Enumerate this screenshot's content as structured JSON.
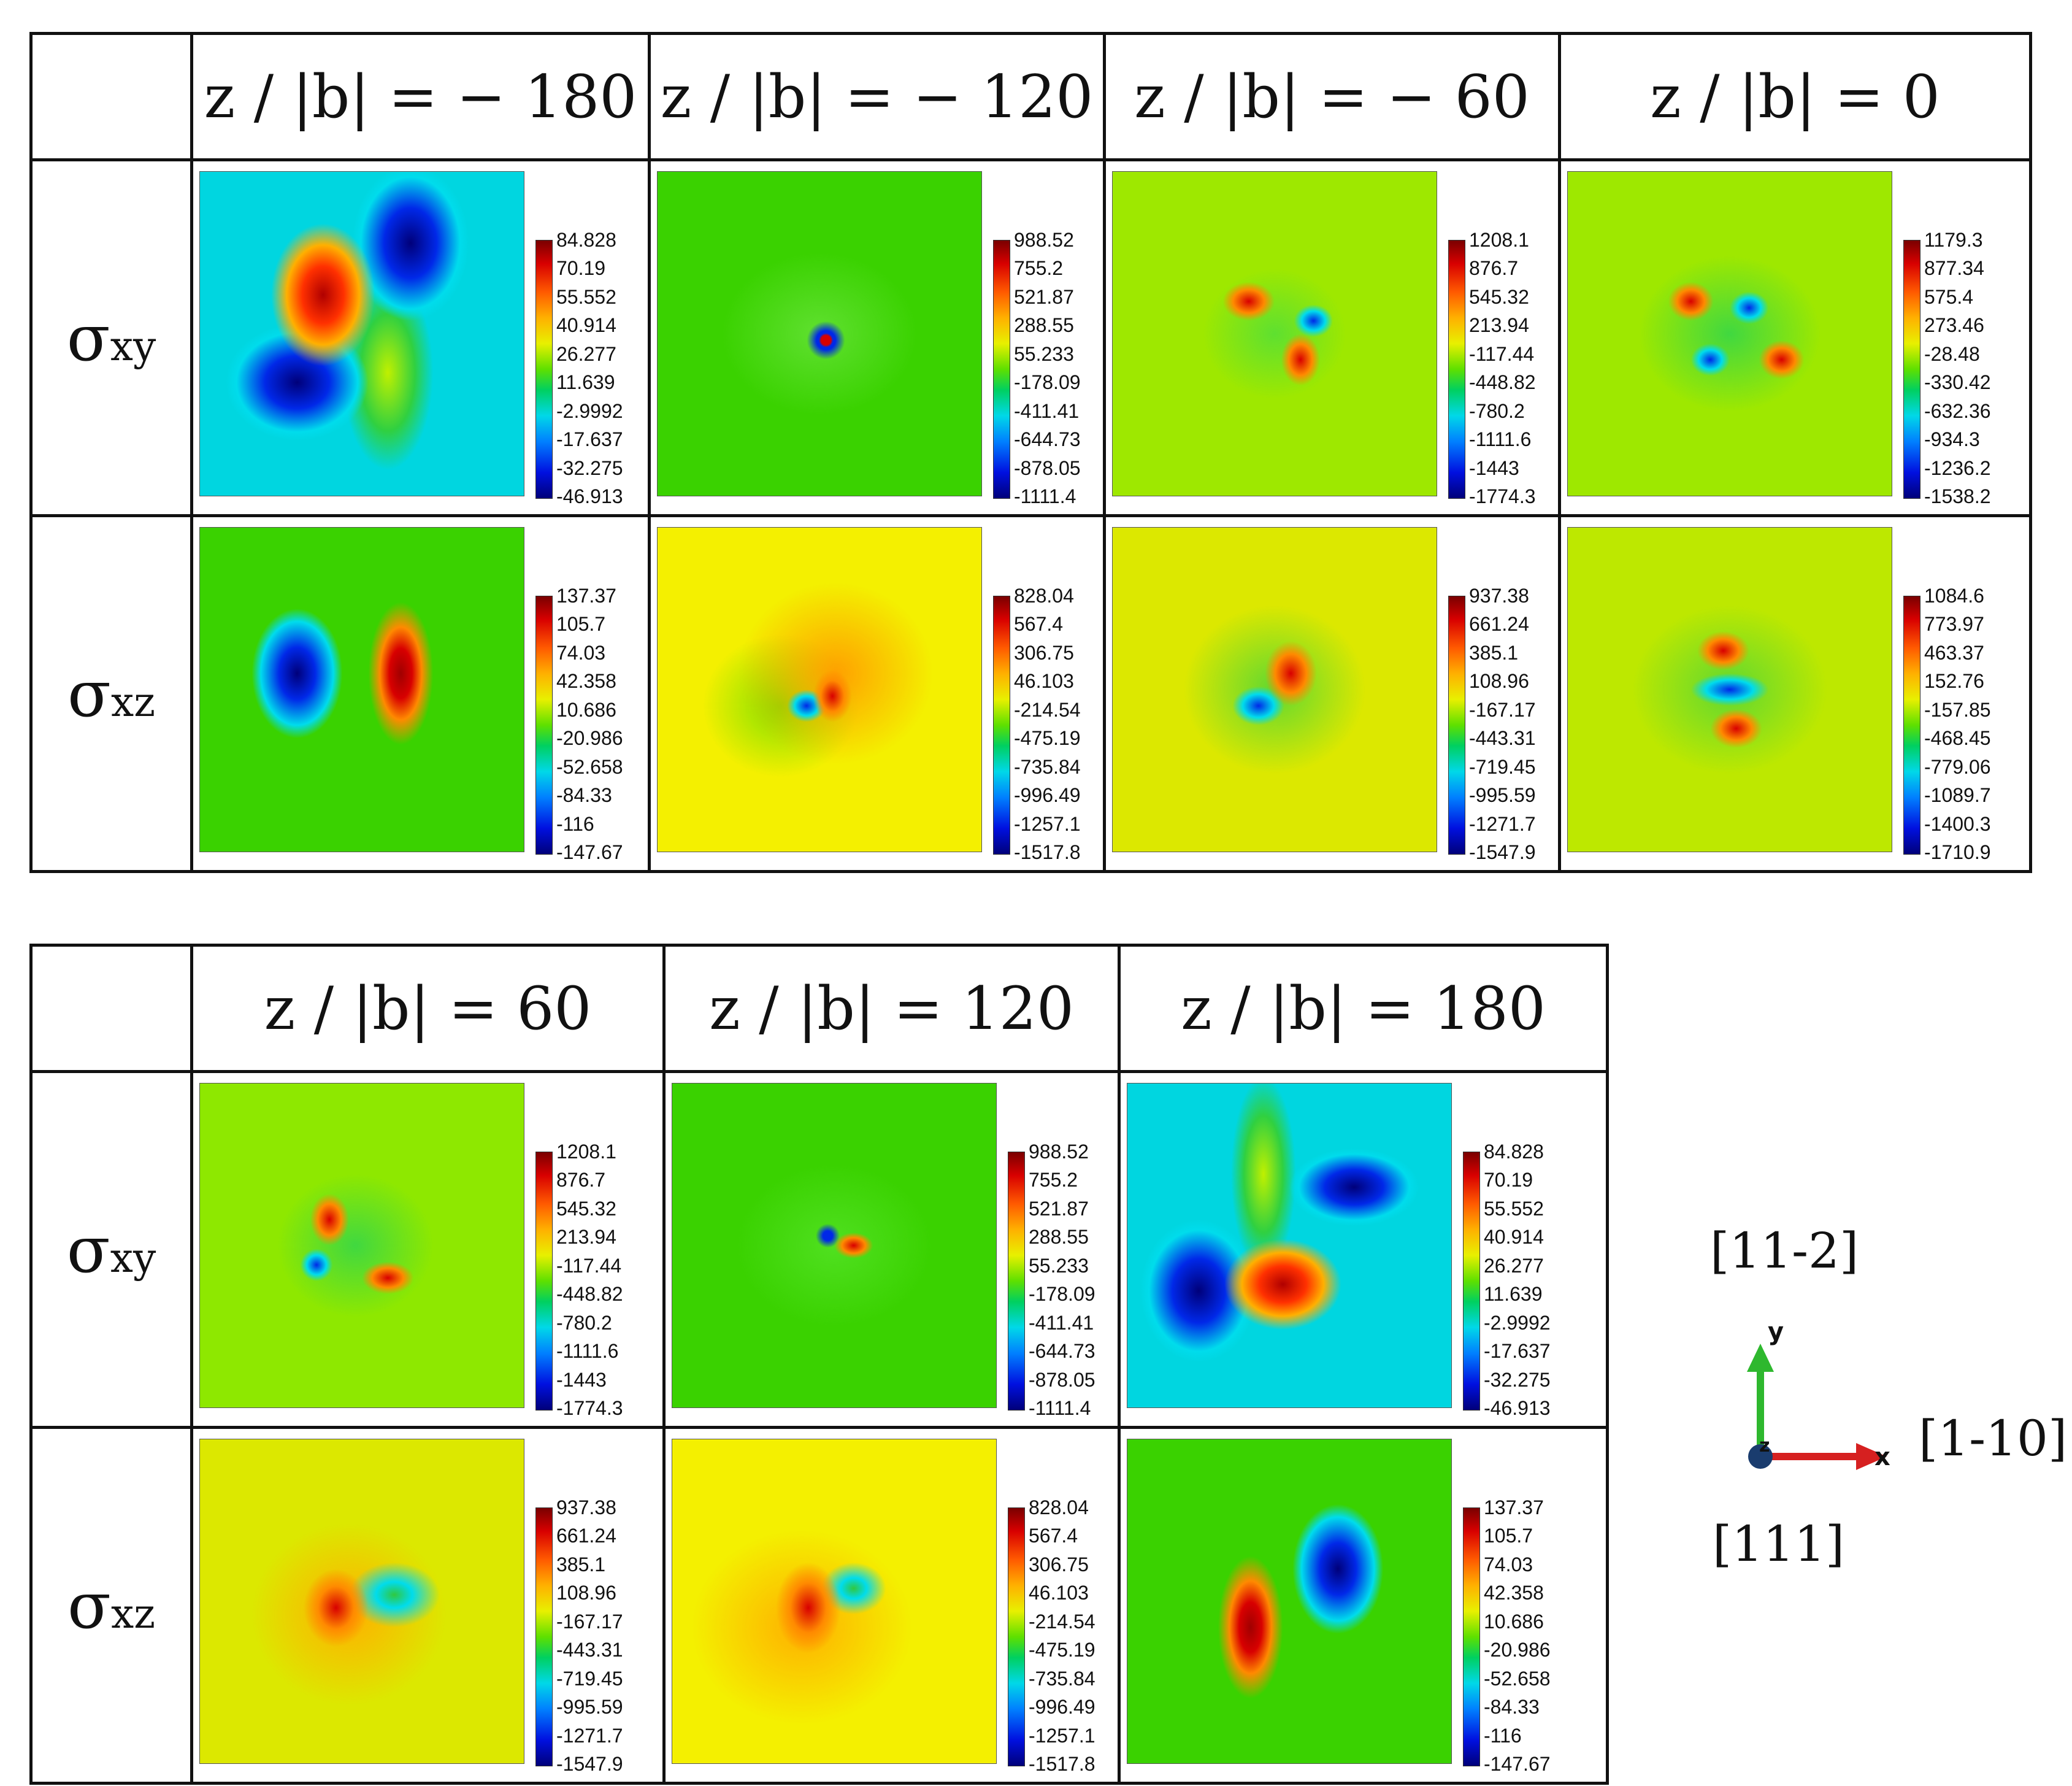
{
  "top_table": {
    "headers": [
      "z / |b| = − 180",
      "z / |b| = − 120",
      "z / |b| = − 60",
      "z / |b| = 0"
    ],
    "row_labels": [
      {
        "symbol": "σ",
        "subscript": "xy"
      },
      {
        "symbol": "σ",
        "subscript": "xz"
      }
    ],
    "colorbars": {
      "sxy": [
        [
          "84.828",
          "70.19",
          "55.552",
          "40.914",
          "26.277",
          "11.639",
          "-2.9992",
          "-17.637",
          "-32.275",
          "-46.913"
        ],
        [
          "988.52",
          "755.2",
          "521.87",
          "288.55",
          "55.233",
          "-178.09",
          "-411.41",
          "-644.73",
          "-878.05",
          "-1111.4"
        ],
        [
          "1208.1",
          "876.7",
          "545.32",
          "213.94",
          "-117.44",
          "-448.82",
          "-780.2",
          "-1111.6",
          "-1443",
          "-1774.3"
        ],
        [
          "1179.3",
          "877.34",
          "575.4",
          "273.46",
          "-28.48",
          "-330.42",
          "-632.36",
          "-934.3",
          "-1236.2",
          "-1538.2"
        ]
      ],
      "sxz": [
        [
          "137.37",
          "105.7",
          "74.03",
          "42.358",
          "10.686",
          "-20.986",
          "-52.658",
          "-84.33",
          "-116",
          "-147.67"
        ],
        [
          "828.04",
          "567.4",
          "306.75",
          "46.103",
          "-214.54",
          "-475.19",
          "-735.84",
          "-996.49",
          "-1257.1",
          "-1517.8"
        ],
        [
          "937.38",
          "661.24",
          "385.1",
          "108.96",
          "-167.17",
          "-443.31",
          "-719.45",
          "-995.59",
          "-1271.7",
          "-1547.9"
        ],
        [
          "1084.6",
          "773.97",
          "463.37",
          "152.76",
          "-157.85",
          "-468.45",
          "-779.06",
          "-1089.7",
          "-1400.3",
          "-1710.9"
        ]
      ]
    }
  },
  "bottom_table": {
    "headers": [
      "z / |b| = 60",
      "z / |b| = 120",
      "z / |b| = 180"
    ],
    "row_labels": [
      {
        "symbol": "σ",
        "subscript": "xy"
      },
      {
        "symbol": "σ",
        "subscript": "xz"
      }
    ],
    "colorbars": {
      "sxy": [
        [
          "1208.1",
          "876.7",
          "545.32",
          "213.94",
          "-117.44",
          "-448.82",
          "-780.2",
          "-1111.6",
          "-1443",
          "-1774.3"
        ],
        [
          "988.52",
          "755.2",
          "521.87",
          "288.55",
          "55.233",
          "-178.09",
          "-411.41",
          "-644.73",
          "-878.05",
          "-1111.4"
        ],
        [
          "84.828",
          "70.19",
          "55.552",
          "40.914",
          "26.277",
          "11.639",
          "-2.9992",
          "-17.637",
          "-32.275",
          "-46.913"
        ]
      ],
      "sxz": [
        [
          "937.38",
          "661.24",
          "385.1",
          "108.96",
          "-167.17",
          "-443.31",
          "-719.45",
          "-995.59",
          "-1271.7",
          "-1547.9"
        ],
        [
          "828.04",
          "567.4",
          "306.75",
          "46.103",
          "-214.54",
          "-475.19",
          "-735.84",
          "-996.49",
          "-1257.1",
          "-1517.8"
        ],
        [
          "137.37",
          "105.7",
          "74.03",
          "42.358",
          "10.686",
          "-20.986",
          "-52.658",
          "-84.33",
          "-116",
          "-147.67"
        ]
      ]
    }
  },
  "orientation": {
    "y_direction": "[11-2]",
    "x_direction": "[1-10]",
    "z_direction": "[111]",
    "axis_y": "y",
    "axis_x": "x",
    "axis_z": "z"
  },
  "colors": {
    "x_axis": "#d62020",
    "y_axis": "#2eb82e",
    "z_axis": "#1a3c6e"
  }
}
